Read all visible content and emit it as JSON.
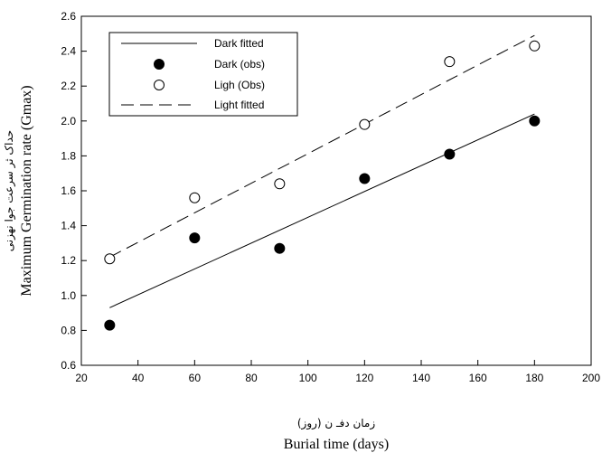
{
  "chart_data": {
    "type": "scatter",
    "xlabel": "Burial time (days)",
    "xlabel_fa": "زمان دفـ ن (روز)",
    "ylabel": "Maximum Germination rate (Gmax)",
    "ylabel_fa": "حداک ثر سرعت جوا نهزنی",
    "xlim": [
      20,
      200
    ],
    "ylim": [
      0.6,
      2.6
    ],
    "xticks": [
      "20",
      "40",
      "60",
      "80",
      "100",
      "120",
      "140",
      "160",
      "180",
      "200"
    ],
    "yticks": [
      "0.6",
      "0.8",
      "1.0",
      "1.2",
      "1.4",
      "1.6",
      "1.8",
      "2.0",
      "2.2",
      "2.4",
      "2.6"
    ],
    "grid": false,
    "legend_position": "top-left",
    "series": [
      {
        "name": "Dark (obs)",
        "kind": "points",
        "marker": "filled-circle",
        "x": [
          30,
          60,
          90,
          120,
          150,
          180
        ],
        "y": [
          0.83,
          1.33,
          1.27,
          1.67,
          1.81,
          2.0
        ]
      },
      {
        "name": "Ligh (Obs)",
        "kind": "points",
        "marker": "open-circle",
        "x": [
          30,
          60,
          90,
          120,
          150,
          180
        ],
        "y": [
          1.21,
          1.56,
          1.64,
          1.98,
          2.34,
          2.43
        ]
      },
      {
        "name": "Dark fitted",
        "kind": "line",
        "style": "solid",
        "x": [
          30,
          180
        ],
        "y": [
          0.93,
          2.04
        ]
      },
      {
        "name": "Light fitted",
        "kind": "line",
        "style": "dashed",
        "x": [
          30,
          180
        ],
        "y": [
          1.22,
          2.49
        ]
      }
    ],
    "legend_order": [
      "Dark fitted",
      "Dark (obs)",
      "Ligh (Obs)",
      "Light fitted"
    ]
  }
}
